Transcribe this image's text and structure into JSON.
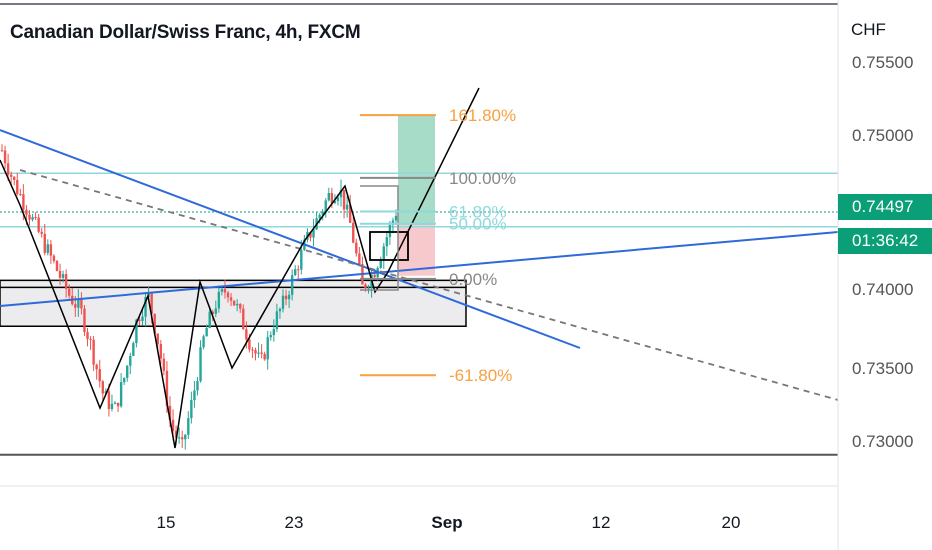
{
  "header": {
    "title": "Canadian Dollar/Swiss Franc, 4h, FXCM",
    "currency": "CHF"
  },
  "price_badge": {
    "price": "0.74497",
    "countdown": "01:36:42"
  },
  "colors": {
    "up": "#26a69a",
    "down": "#ef5350",
    "trendline": "#2f6ad9",
    "fib_orange": "#f7a140",
    "fib_gray": "#888888",
    "fib_cyan": "#8fd8dc",
    "target_green": "#a7dcc9",
    "stop_red": "#f8c9cc",
    "zone_fill": "#ececef",
    "price_badge": "#0b9f78"
  },
  "chart_data": {
    "type": "candlestick",
    "title": "Canadian Dollar/Swiss Franc, 4h, FXCM",
    "ylabel": "CHF",
    "ylim": [
      0.729,
      0.7555
    ],
    "y_ticks": [
      "0.75500",
      "0.75000",
      "0.74000",
      "0.73500",
      "0.73000"
    ],
    "x_ticks": [
      "15",
      "23",
      "Sep",
      "12",
      "20"
    ],
    "last_price": 0.74497,
    "grid": false,
    "horizontal_lines": [
      0.7475,
      0.745,
      0.744,
      0.7291
    ],
    "support_zone": [
      0.7375,
      0.7405
    ],
    "fibonacci_levels": [
      {
        "label": "161.80%",
        "value": 0.7513
      },
      {
        "label": "100.00%",
        "value": 0.7472
      },
      {
        "label": "61.80%",
        "value": 0.745
      },
      {
        "label": "50.00%",
        "value": 0.7442
      },
      {
        "label": "0.00%",
        "value": 0.7406
      },
      {
        "label": "-61.80%",
        "value": 0.7343
      }
    ],
    "price_path_approx": [
      0.749,
      0.747,
      0.7455,
      0.744,
      0.7425,
      0.741,
      0.7395,
      0.7385,
      0.736,
      0.733,
      0.732,
      0.7345,
      0.738,
      0.7395,
      0.736,
      0.731,
      0.7295,
      0.733,
      0.737,
      0.739,
      0.74,
      0.7385,
      0.7365,
      0.735,
      0.7375,
      0.739,
      0.741,
      0.743,
      0.7445,
      0.746,
      0.7465,
      0.744,
      0.74,
      0.741,
      0.743,
      0.745
    ]
  }
}
